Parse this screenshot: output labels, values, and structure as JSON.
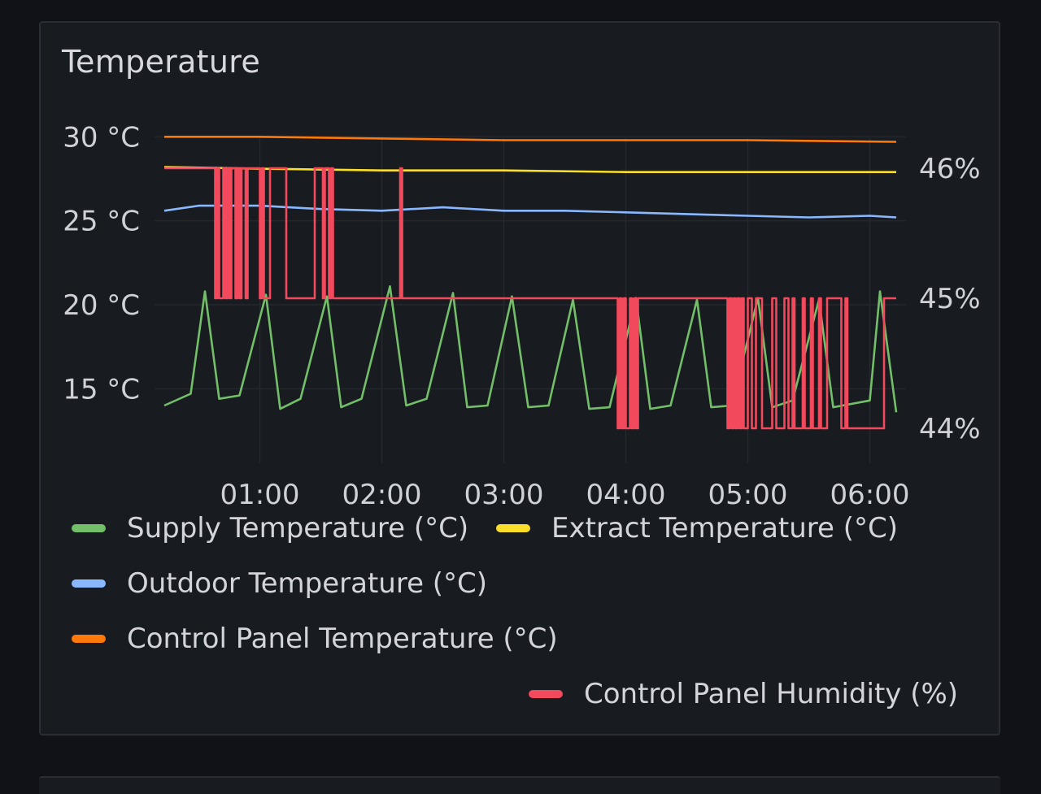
{
  "panel": {
    "title": "Temperature"
  },
  "chart_data": {
    "type": "line",
    "title": "Temperature",
    "x_ticks": [
      "01:00",
      "02:00",
      "03:00",
      "04:00",
      "05:00",
      "06:00"
    ],
    "x_range": [
      "00:13",
      "06:13"
    ],
    "y_left": {
      "ticks": [
        "15 °C",
        "20 °C",
        "25 °C",
        "30 °C"
      ],
      "range": [
        12.5,
        30.5
      ],
      "unit": "°C"
    },
    "y_right": {
      "ticks": [
        "44%",
        "45%",
        "46%"
      ],
      "range": [
        44.0,
        46.0
      ],
      "unit": "%"
    },
    "grid": true,
    "legend_position": "bottom",
    "series": [
      {
        "name": "Supply Temperature (°C)",
        "color": "#73bf69",
        "axis": "left",
        "style": "periodic spikes, baseline ~14 °C, peak ~21 °C roughly every 30 min",
        "points": [
          [
            "00:13",
            14.0
          ],
          [
            "00:26",
            14.7
          ],
          [
            "00:33",
            20.8
          ],
          [
            "00:40",
            14.4
          ],
          [
            "00:50",
            14.6
          ],
          [
            "01:03",
            20.6
          ],
          [
            "01:10",
            13.8
          ],
          [
            "01:20",
            14.4
          ],
          [
            "01:33",
            20.5
          ],
          [
            "01:40",
            13.9
          ],
          [
            "01:50",
            14.4
          ],
          [
            "02:04",
            21.1
          ],
          [
            "02:12",
            14.0
          ],
          [
            "02:22",
            14.4
          ],
          [
            "02:35",
            20.7
          ],
          [
            "02:42",
            13.9
          ],
          [
            "02:52",
            14.0
          ],
          [
            "03:04",
            20.5
          ],
          [
            "03:12",
            13.9
          ],
          [
            "03:22",
            14.0
          ],
          [
            "03:34",
            20.3
          ],
          [
            "03:42",
            13.8
          ],
          [
            "03:52",
            13.9
          ],
          [
            "04:05",
            20.4
          ],
          [
            "04:12",
            13.8
          ],
          [
            "04:22",
            14.0
          ],
          [
            "04:35",
            20.3
          ],
          [
            "04:42",
            13.9
          ],
          [
            "04:52",
            14.0
          ],
          [
            "05:05",
            20.4
          ],
          [
            "05:12",
            13.9
          ],
          [
            "05:22",
            14.3
          ],
          [
            "05:35",
            20.3
          ],
          [
            "05:42",
            13.9
          ],
          [
            "06:00",
            14.3
          ],
          [
            "06:05",
            20.8
          ],
          [
            "06:13",
            13.6
          ]
        ]
      },
      {
        "name": "Extract Temperature (°C)",
        "color": "#fade2a",
        "axis": "left",
        "points": [
          [
            "00:13",
            28.2
          ],
          [
            "01:00",
            28.1
          ],
          [
            "02:00",
            28.0
          ],
          [
            "03:00",
            28.0
          ],
          [
            "04:00",
            27.9
          ],
          [
            "05:00",
            27.9
          ],
          [
            "06:13",
            27.9
          ]
        ]
      },
      {
        "name": "Outdoor Temperature (°C)",
        "color": "#8ab8ff",
        "axis": "left",
        "points": [
          [
            "00:13",
            25.6
          ],
          [
            "00:30",
            25.9
          ],
          [
            "01:00",
            25.9
          ],
          [
            "01:30",
            25.7
          ],
          [
            "02:00",
            25.6
          ],
          [
            "02:30",
            25.8
          ],
          [
            "03:00",
            25.6
          ],
          [
            "03:30",
            25.6
          ],
          [
            "04:00",
            25.5
          ],
          [
            "04:30",
            25.4
          ],
          [
            "05:00",
            25.3
          ],
          [
            "05:30",
            25.2
          ],
          [
            "06:00",
            25.3
          ],
          [
            "06:13",
            25.2
          ]
        ]
      },
      {
        "name": "Control Panel Temperature (°C)",
        "color": "#ff780a",
        "axis": "left",
        "points": [
          [
            "00:13",
            30.0
          ],
          [
            "01:00",
            30.0
          ],
          [
            "02:00",
            29.9
          ],
          [
            "03:00",
            29.8
          ],
          [
            "04:00",
            29.8
          ],
          [
            "05:00",
            29.8
          ],
          [
            "06:13",
            29.7
          ]
        ]
      },
      {
        "name": "Control Panel Humidity (%)",
        "color": "#f2495c",
        "axis": "right",
        "style": "step line toggling between 46% and 45% (early) and 45% and 44% (late)",
        "points": [
          [
            "00:13",
            46
          ],
          [
            "00:38",
            46
          ],
          [
            "00:38",
            45
          ],
          [
            "00:39",
            45
          ],
          [
            "00:39",
            46
          ],
          [
            "00:40",
            46
          ],
          [
            "00:40",
            45
          ],
          [
            "00:42",
            45
          ],
          [
            "00:42",
            46
          ],
          [
            "00:43",
            46
          ],
          [
            "00:43",
            45
          ],
          [
            "00:44",
            45
          ],
          [
            "00:44",
            46
          ],
          [
            "00:45",
            46
          ],
          [
            "00:45",
            45
          ],
          [
            "00:46",
            45
          ],
          [
            "00:46",
            46
          ],
          [
            "00:48",
            46
          ],
          [
            "00:48",
            45
          ],
          [
            "00:49",
            45
          ],
          [
            "00:49",
            46
          ],
          [
            "00:50",
            46
          ],
          [
            "00:50",
            45
          ],
          [
            "00:51",
            45
          ],
          [
            "00:51",
            46
          ],
          [
            "00:53",
            46
          ],
          [
            "00:53",
            45
          ],
          [
            "00:54",
            45
          ],
          [
            "00:54",
            46
          ],
          [
            "01:00",
            46
          ],
          [
            "01:00",
            45
          ],
          [
            "01:01",
            45
          ],
          [
            "01:01",
            46
          ],
          [
            "01:02",
            46
          ],
          [
            "01:02",
            45
          ],
          [
            "01:05",
            45
          ],
          [
            "01:05",
            46
          ],
          [
            "01:13",
            46
          ],
          [
            "01:13",
            45
          ],
          [
            "01:27",
            45
          ],
          [
            "01:27",
            46
          ],
          [
            "01:31",
            46
          ],
          [
            "01:31",
            45
          ],
          [
            "01:32",
            45
          ],
          [
            "01:32",
            46
          ],
          [
            "01:34",
            46
          ],
          [
            "01:34",
            45
          ],
          [
            "01:35",
            45
          ],
          [
            "01:35",
            46
          ],
          [
            "01:36",
            46
          ],
          [
            "01:36",
            45
          ],
          [
            "02:09",
            45
          ],
          [
            "02:09",
            46
          ],
          [
            "02:10",
            46
          ],
          [
            "02:10",
            45
          ],
          [
            "03:56",
            45
          ],
          [
            "03:56",
            44
          ],
          [
            "03:57",
            44
          ],
          [
            "03:57",
            45
          ],
          [
            "03:58",
            45
          ],
          [
            "03:58",
            44
          ],
          [
            "03:59",
            44
          ],
          [
            "03:59",
            45
          ],
          [
            "04:00",
            45
          ],
          [
            "04:00",
            44
          ],
          [
            "04:02",
            44
          ],
          [
            "04:02",
            45
          ],
          [
            "04:03",
            45
          ],
          [
            "04:03",
            44
          ],
          [
            "04:04",
            44
          ],
          [
            "04:04",
            45
          ],
          [
            "04:05",
            45
          ],
          [
            "04:05",
            44
          ],
          [
            "04:06",
            44
          ],
          [
            "04:06",
            45
          ],
          [
            "04:50",
            45
          ],
          [
            "04:50",
            44
          ],
          [
            "04:51",
            44
          ],
          [
            "04:51",
            45
          ],
          [
            "04:52",
            45
          ],
          [
            "04:52",
            44
          ],
          [
            "04:53",
            44
          ],
          [
            "04:53",
            45
          ],
          [
            "04:54",
            45
          ],
          [
            "04:54",
            44
          ],
          [
            "04:55",
            44
          ],
          [
            "04:55",
            45
          ],
          [
            "04:56",
            45
          ],
          [
            "04:56",
            44
          ],
          [
            "04:57",
            44
          ],
          [
            "04:57",
            45
          ],
          [
            "04:58",
            45
          ],
          [
            "04:58",
            44
          ],
          [
            "05:00",
            44
          ],
          [
            "05:00",
            45
          ],
          [
            "05:02",
            45
          ],
          [
            "05:02",
            44
          ],
          [
            "05:04",
            44
          ],
          [
            "05:04",
            45
          ],
          [
            "05:07",
            45
          ],
          [
            "05:07",
            44
          ],
          [
            "05:12",
            44
          ],
          [
            "05:12",
            45
          ],
          [
            "05:14",
            45
          ],
          [
            "05:14",
            44
          ],
          [
            "05:18",
            44
          ],
          [
            "05:18",
            45
          ],
          [
            "05:20",
            45
          ],
          [
            "05:20",
            44
          ],
          [
            "05:22",
            44
          ],
          [
            "05:22",
            45
          ],
          [
            "05:23",
            45
          ],
          [
            "05:23",
            44
          ],
          [
            "05:27",
            44
          ],
          [
            "05:27",
            45
          ],
          [
            "05:28",
            45
          ],
          [
            "05:28",
            44
          ],
          [
            "05:31",
            44
          ],
          [
            "05:31",
            45
          ],
          [
            "05:32",
            45
          ],
          [
            "05:32",
            44
          ],
          [
            "05:35",
            44
          ],
          [
            "05:35",
            45
          ],
          [
            "05:36",
            45
          ],
          [
            "05:36",
            44
          ],
          [
            "05:39",
            44
          ],
          [
            "05:39",
            45
          ],
          [
            "05:46",
            45
          ],
          [
            "05:46",
            44
          ],
          [
            "05:48",
            44
          ],
          [
            "05:48",
            45
          ],
          [
            "05:49",
            45
          ],
          [
            "05:49",
            44
          ],
          [
            "06:07",
            44
          ],
          [
            "06:07",
            45
          ],
          [
            "06:13",
            45
          ]
        ]
      }
    ]
  }
}
